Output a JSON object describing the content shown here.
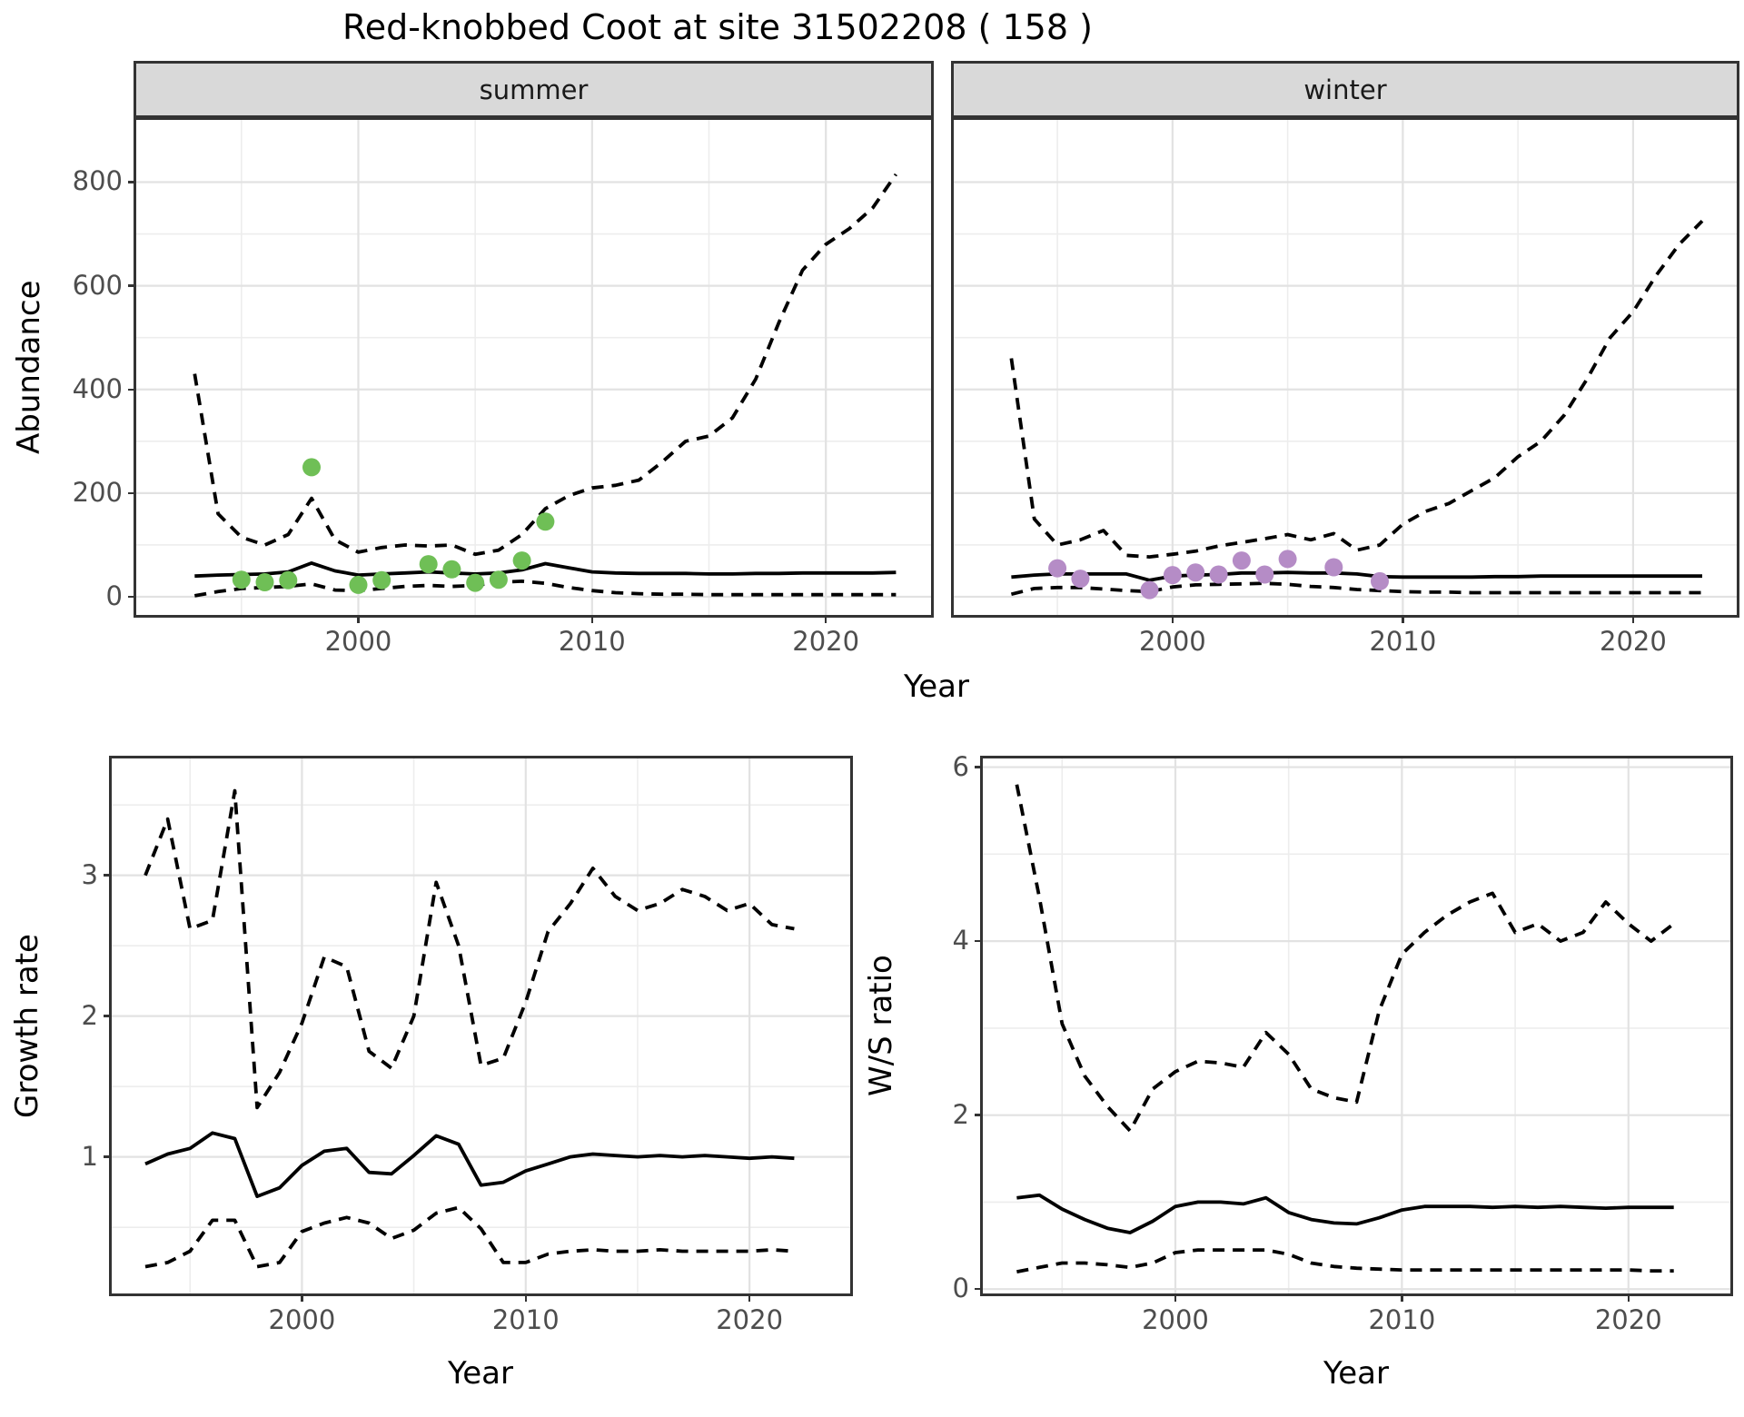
{
  "title": "Red-knobbed Coot at site 31502208 ( 158 )",
  "colors": {
    "summer_points": "#6FBF56",
    "winter_points": "#B58CC6",
    "line": "#000000",
    "strip_background": "#D9D9D9",
    "panel_border": "#333333",
    "gridline_major": "#E2E2E2",
    "gridline_minor": "#EDEDED",
    "axis_text": "#4D4D4D",
    "background": "#FFFFFF"
  },
  "chart_data": [
    {
      "id": "abundance-summer",
      "type": "line",
      "facet_label": "summer",
      "xlabel": "Year",
      "ylabel": "Abundance",
      "xlim": [
        1990.5,
        2024.5
      ],
      "ylim": [
        -35,
        920
      ],
      "xticks": {
        "major": [
          2000,
          2010,
          2020
        ],
        "labels": [
          "2000",
          "2010",
          "2020"
        ],
        "minor": [
          1995,
          2005,
          2015
        ]
      },
      "yticks": {
        "major": [
          0,
          200,
          400,
          600,
          800
        ],
        "labels": [
          "0",
          "200",
          "400",
          "600",
          "800"
        ],
        "minor": [
          100,
          300,
          500,
          700
        ]
      },
      "series": [
        {
          "name": "estimate",
          "style": "solid",
          "x": [
            1993,
            1994,
            1995,
            1996,
            1997,
            1998,
            1999,
            2000,
            2001,
            2002,
            2003,
            2004,
            2005,
            2006,
            2007,
            2008,
            2009,
            2010,
            2011,
            2012,
            2013,
            2014,
            2015,
            2016,
            2017,
            2018,
            2019,
            2020,
            2021,
            2022,
            2023
          ],
          "y": [
            40,
            42,
            43,
            44,
            48,
            65,
            50,
            42,
            44,
            46,
            48,
            46,
            44,
            46,
            52,
            64,
            56,
            48,
            46,
            45,
            45,
            45,
            44,
            44,
            45,
            45,
            46,
            46,
            46,
            46,
            47
          ]
        },
        {
          "name": "upper_95ci",
          "style": "dashed",
          "x": [
            1993,
            1994,
            1995,
            1996,
            1997,
            1998,
            1999,
            2000,
            2001,
            2002,
            2003,
            2004,
            2005,
            2006,
            2007,
            2008,
            2009,
            2010,
            2011,
            2012,
            2013,
            2014,
            2015,
            2016,
            2017,
            2018,
            2019,
            2020,
            2021,
            2022,
            2023
          ],
          "y": [
            430,
            160,
            115,
            100,
            120,
            190,
            110,
            86,
            95,
            100,
            98,
            100,
            82,
            90,
            120,
            170,
            195,
            210,
            215,
            225,
            260,
            300,
            310,
            345,
            420,
            530,
            630,
            680,
            710,
            750,
            815
          ]
        },
        {
          "name": "lower_95ci",
          "style": "dashed",
          "x": [
            1993,
            1994,
            1995,
            1996,
            1997,
            1998,
            1999,
            2000,
            2001,
            2002,
            2003,
            2004,
            2005,
            2006,
            2007,
            2008,
            2009,
            2010,
            2011,
            2012,
            2013,
            2014,
            2015,
            2016,
            2017,
            2018,
            2019,
            2020,
            2021,
            2022,
            2023
          ],
          "y": [
            2,
            10,
            16,
            18,
            20,
            25,
            13,
            12,
            16,
            20,
            22,
            20,
            22,
            28,
            30,
            26,
            18,
            12,
            8,
            6,
            5,
            5,
            4,
            4,
            4,
            4,
            4,
            4,
            4,
            4,
            4
          ]
        }
      ],
      "points": {
        "name": "observed_counts",
        "color": "#6FBF56",
        "x": [
          1995,
          1996,
          1997,
          1998,
          2000,
          2001,
          2003,
          2004,
          2005,
          2006,
          2007,
          2008
        ],
        "y": [
          33,
          28,
          32,
          250,
          23,
          32,
          63,
          53,
          27,
          33,
          70,
          145
        ]
      }
    },
    {
      "id": "abundance-winter",
      "type": "line",
      "facet_label": "winter",
      "xlabel": "Year",
      "ylabel": "Abundance",
      "xlim": [
        1990.5,
        2024.5
      ],
      "ylim": [
        -35,
        920
      ],
      "xticks": {
        "major": [
          2000,
          2010,
          2020
        ],
        "labels": [
          "2000",
          "2010",
          "2020"
        ],
        "minor": [
          1995,
          2005,
          2015
        ]
      },
      "yticks": {
        "major": [
          0,
          200,
          400,
          600,
          800
        ],
        "labels": [
          "0",
          "200",
          "400",
          "600",
          "800"
        ],
        "minor": [
          100,
          300,
          500,
          700
        ]
      },
      "series": [
        {
          "name": "estimate",
          "style": "solid",
          "x": [
            1993,
            1994,
            1995,
            1996,
            1997,
            1998,
            1999,
            2000,
            2001,
            2002,
            2003,
            2004,
            2005,
            2006,
            2007,
            2008,
            2009,
            2010,
            2011,
            2012,
            2013,
            2014,
            2015,
            2016,
            2017,
            2018,
            2019,
            2020,
            2021,
            2022,
            2023
          ],
          "y": [
            38,
            42,
            44,
            44,
            44,
            44,
            32,
            40,
            42,
            43,
            46,
            46,
            47,
            46,
            46,
            44,
            39,
            38,
            38,
            38,
            38,
            39,
            39,
            40,
            40,
            40,
            40,
            40,
            40,
            40,
            40
          ]
        },
        {
          "name": "upper_95ci",
          "style": "dashed",
          "x": [
            1993,
            1994,
            1995,
            1996,
            1997,
            1998,
            1999,
            2000,
            2001,
            2002,
            2003,
            2004,
            2005,
            2006,
            2007,
            2008,
            2009,
            2010,
            2011,
            2012,
            2013,
            2014,
            2015,
            2016,
            2017,
            2018,
            2019,
            2020,
            2021,
            2022,
            2023
          ],
          "y": [
            460,
            150,
            100,
            110,
            128,
            80,
            77,
            82,
            88,
            98,
            105,
            112,
            120,
            110,
            122,
            90,
            100,
            140,
            165,
            180,
            205,
            230,
            270,
            300,
            350,
            420,
            500,
            550,
            620,
            680,
            725
          ]
        },
        {
          "name": "lower_95ci",
          "style": "dashed",
          "x": [
            1993,
            1994,
            1995,
            1996,
            1997,
            1998,
            1999,
            2000,
            2001,
            2002,
            2003,
            2004,
            2005,
            2006,
            2007,
            2008,
            2009,
            2010,
            2011,
            2012,
            2013,
            2014,
            2015,
            2016,
            2017,
            2018,
            2019,
            2020,
            2021,
            2022,
            2023
          ],
          "y": [
            5,
            16,
            18,
            18,
            15,
            12,
            10,
            19,
            23,
            24,
            25,
            26,
            24,
            20,
            18,
            14,
            12,
            10,
            9,
            9,
            8,
            8,
            8,
            8,
            8,
            8,
            8,
            8,
            8,
            8,
            8
          ]
        }
      ],
      "points": {
        "name": "observed_counts",
        "color": "#B58CC6",
        "x": [
          1995,
          1996,
          1999,
          2000,
          2001,
          2002,
          2003,
          2004,
          2005,
          2007,
          2009
        ],
        "y": [
          55,
          35,
          13,
          42,
          47,
          43,
          70,
          43,
          73,
          57,
          30
        ]
      }
    },
    {
      "id": "growth-rate",
      "type": "line",
      "facet_label": "",
      "xlabel": "Year",
      "ylabel": "Growth rate",
      "xlim": [
        1991.5,
        2024.5
      ],
      "ylim": [
        0.03,
        3.83
      ],
      "xticks": {
        "major": [
          2000,
          2010,
          2020
        ],
        "labels": [
          "2000",
          "2010",
          "2020"
        ],
        "minor": [
          1995,
          2005,
          2015
        ]
      },
      "yticks": {
        "major": [
          1,
          2,
          3
        ],
        "labels": [
          "1",
          "2",
          "3"
        ],
        "minor": [
          0.5,
          1.5,
          2.5,
          3.5
        ]
      },
      "series": [
        {
          "name": "estimate",
          "style": "solid",
          "x": [
            1993,
            1994,
            1995,
            1996,
            1997,
            1998,
            1999,
            2000,
            2001,
            2002,
            2003,
            2004,
            2005,
            2006,
            2007,
            2008,
            2009,
            2010,
            2011,
            2012,
            2013,
            2014,
            2015,
            2016,
            2017,
            2018,
            2019,
            2020,
            2021,
            2022
          ],
          "y": [
            0.95,
            1.02,
            1.06,
            1.17,
            1.13,
            0.72,
            0.78,
            0.94,
            1.04,
            1.06,
            0.89,
            0.88,
            1.01,
            1.15,
            1.09,
            0.8,
            0.82,
            0.9,
            0.95,
            1.0,
            1.02,
            1.01,
            1.0,
            1.01,
            1.0,
            1.01,
            1.0,
            0.99,
            1.0,
            0.99
          ]
        },
        {
          "name": "upper_95ci",
          "style": "dashed",
          "x": [
            1993,
            1994,
            1995,
            1996,
            1997,
            1998,
            1999,
            2000,
            2001,
            2002,
            2003,
            2004,
            2005,
            2006,
            2007,
            2008,
            2009,
            2010,
            2011,
            2012,
            2013,
            2014,
            2015,
            2016,
            2017,
            2018,
            2019,
            2020,
            2021,
            2022
          ],
          "y": [
            3.0,
            3.4,
            2.62,
            2.68,
            3.6,
            1.35,
            1.6,
            1.95,
            2.42,
            2.35,
            1.75,
            1.63,
            2.0,
            2.95,
            2.5,
            1.65,
            1.7,
            2.1,
            2.6,
            2.8,
            3.05,
            2.85,
            2.75,
            2.8,
            2.9,
            2.85,
            2.75,
            2.8,
            2.65,
            2.62
          ]
        },
        {
          "name": "lower_95ci",
          "style": "dashed",
          "x": [
            1993,
            1994,
            1995,
            1996,
            1997,
            1998,
            1999,
            2000,
            2001,
            2002,
            2003,
            2004,
            2005,
            2006,
            2007,
            2008,
            2009,
            2010,
            2011,
            2012,
            2013,
            2014,
            2015,
            2016,
            2017,
            2018,
            2019,
            2020,
            2021,
            2022
          ],
          "y": [
            0.22,
            0.25,
            0.33,
            0.55,
            0.55,
            0.22,
            0.25,
            0.47,
            0.53,
            0.57,
            0.53,
            0.42,
            0.48,
            0.6,
            0.64,
            0.49,
            0.25,
            0.25,
            0.31,
            0.33,
            0.34,
            0.33,
            0.33,
            0.34,
            0.33,
            0.33,
            0.33,
            0.33,
            0.34,
            0.33
          ]
        }
      ],
      "points": null
    },
    {
      "id": "ws-ratio",
      "type": "line",
      "facet_label": "",
      "xlabel": "Year",
      "ylabel": "W/S ratio",
      "xlim": [
        1991.5,
        2024.5
      ],
      "ylim": [
        -0.05,
        6.1
      ],
      "xticks": {
        "major": [
          2000,
          2010,
          2020
        ],
        "labels": [
          "2000",
          "2010",
          "2020"
        ],
        "minor": [
          1995,
          2005,
          2015
        ]
      },
      "yticks": {
        "major": [
          0,
          2,
          4,
          6
        ],
        "labels": [
          "0",
          "2",
          "4",
          "6"
        ],
        "minor": [
          1,
          3,
          5
        ]
      },
      "series": [
        {
          "name": "estimate",
          "style": "solid",
          "x": [
            1993,
            1994,
            1995,
            1996,
            1997,
            1998,
            1999,
            2000,
            2001,
            2002,
            2003,
            2004,
            2005,
            2006,
            2007,
            2008,
            2009,
            2010,
            2011,
            2012,
            2013,
            2014,
            2015,
            2016,
            2017,
            2018,
            2019,
            2020,
            2021,
            2022
          ],
          "y": [
            1.05,
            1.08,
            0.92,
            0.8,
            0.7,
            0.65,
            0.78,
            0.95,
            1.0,
            1.0,
            0.98,
            1.05,
            0.88,
            0.8,
            0.76,
            0.75,
            0.82,
            0.91,
            0.95,
            0.95,
            0.95,
            0.94,
            0.95,
            0.94,
            0.95,
            0.94,
            0.93,
            0.94,
            0.94,
            0.94
          ]
        },
        {
          "name": "upper_95ci",
          "style": "dashed",
          "x": [
            1993,
            1994,
            1995,
            1996,
            1997,
            1998,
            1999,
            2000,
            2001,
            2002,
            2003,
            2004,
            2005,
            2006,
            2007,
            2008,
            2009,
            2010,
            2011,
            2012,
            2013,
            2014,
            2015,
            2016,
            2017,
            2018,
            2019,
            2020,
            2021,
            2022
          ],
          "y": [
            5.8,
            4.5,
            3.05,
            2.45,
            2.1,
            1.82,
            2.3,
            2.5,
            2.62,
            2.6,
            2.55,
            2.95,
            2.7,
            2.3,
            2.2,
            2.15,
            3.2,
            3.85,
            4.1,
            4.3,
            4.45,
            4.55,
            4.1,
            4.2,
            4.0,
            4.1,
            4.45,
            4.2,
            4.0,
            4.2
          ]
        },
        {
          "name": "lower_95ci",
          "style": "dashed",
          "x": [
            1993,
            1994,
            1995,
            1996,
            1997,
            1998,
            1999,
            2000,
            2001,
            2002,
            2003,
            2004,
            2005,
            2006,
            2007,
            2008,
            2009,
            2010,
            2011,
            2012,
            2013,
            2014,
            2015,
            2016,
            2017,
            2018,
            2019,
            2020,
            2021,
            2022
          ],
          "y": [
            0.2,
            0.25,
            0.3,
            0.3,
            0.28,
            0.25,
            0.3,
            0.42,
            0.45,
            0.45,
            0.45,
            0.45,
            0.4,
            0.3,
            0.26,
            0.24,
            0.23,
            0.22,
            0.22,
            0.22,
            0.22,
            0.22,
            0.22,
            0.22,
            0.22,
            0.22,
            0.22,
            0.22,
            0.21,
            0.21
          ]
        }
      ],
      "points": null
    }
  ]
}
